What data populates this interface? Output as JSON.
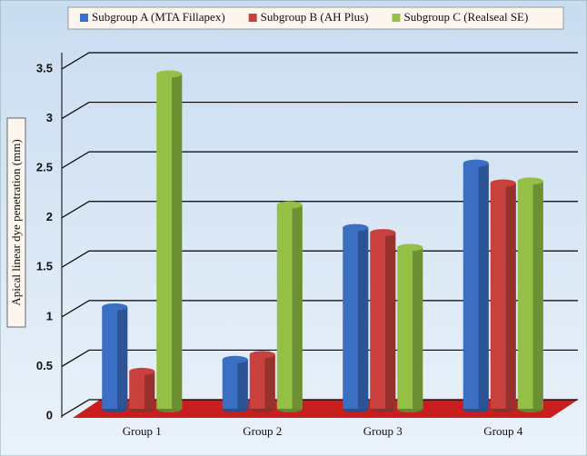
{
  "chart_data": {
    "type": "bar3d",
    "y_label": "Apical linear dye penetration (mm)",
    "categories": [
      "Group 1",
      "Group 2",
      "Group 3",
      "Group 4"
    ],
    "series": [
      {
        "name": "Subgroup A (MTA Fillapex)",
        "color": "#3b6fc4",
        "values": [
          1.1,
          0.57,
          1.9,
          2.55
        ]
      },
      {
        "name": "Subgroup B (AH Plus)",
        "color": "#c9413c",
        "values": [
          0.45,
          0.62,
          1.85,
          2.35
        ]
      },
      {
        "name": "Subgroup C (Realseal SE)",
        "color": "#93c045",
        "values": [
          3.45,
          2.13,
          1.7,
          2.37
        ]
      }
    ],
    "ylim": [
      0,
      3.5
    ],
    "yticks": [
      0,
      0.5,
      1,
      1.5,
      2,
      2.5,
      3,
      3.5
    ],
    "grid": true,
    "legend": "top"
  }
}
